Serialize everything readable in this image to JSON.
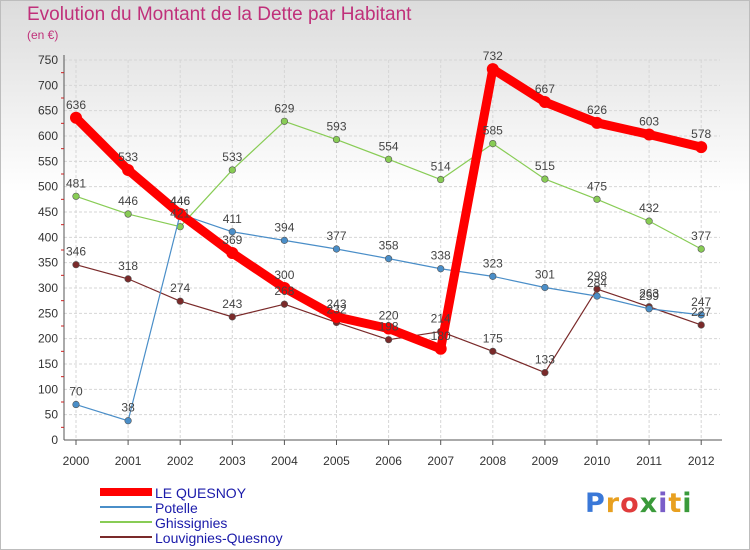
{
  "header": {
    "title": "Evolution du Montant de la Dette par Habitant",
    "subtitle": "(en €)"
  },
  "logo": {
    "text": "Proxiti",
    "letter_colors": [
      "#3a78d8",
      "#e8a020",
      "#e03c3c",
      "#3a9a3a",
      "#7a5ec8",
      "#e8a020",
      "#3a9a3a"
    ]
  },
  "chart_data": {
    "type": "line",
    "x": [
      "2000",
      "2001",
      "2002",
      "2003",
      "2004",
      "2005",
      "2006",
      "2007",
      "2008",
      "2009",
      "2010",
      "2011",
      "2012"
    ],
    "ylim": [
      0,
      750
    ],
    "yticks": [
      0,
      50,
      100,
      150,
      200,
      250,
      300,
      350,
      400,
      450,
      500,
      550,
      600,
      650,
      700,
      750
    ],
    "grid": true,
    "legend_position": "bottom-left",
    "series": [
      {
        "name": "LE QUESNOY",
        "color": "#ff0000",
        "values": [
          636,
          533,
          446,
          369,
          300,
          243,
          220,
          180,
          732,
          667,
          626,
          603,
          578
        ]
      },
      {
        "name": "Potelle",
        "color": "#4a8ec8",
        "values": [
          70,
          38,
          446,
          411,
          394,
          377,
          358,
          338,
          323,
          301,
          284,
          259,
          247
        ]
      },
      {
        "name": "Ghissignies",
        "color": "#88cc55",
        "values": [
          481,
          446,
          421,
          533,
          629,
          593,
          554,
          514,
          585,
          515,
          475,
          432,
          377
        ]
      },
      {
        "name": "Louvignies-Quesnoy",
        "color": "#7a2a2a",
        "values": [
          346,
          318,
          274,
          243,
          268,
          232,
          198,
          214,
          175,
          133,
          298,
          263,
          227
        ]
      }
    ],
    "point_labels": [
      [
        "636",
        "533",
        "446",
        "369",
        "300",
        "243",
        "220",
        "180",
        "732",
        "667",
        "626",
        "603",
        "578"
      ],
      [
        "70",
        "38",
        "446",
        "411",
        "394",
        "377",
        "358",
        "338",
        "323",
        "301",
        "284",
        "259",
        "247"
      ],
      [
        "481",
        "446",
        "421",
        "533",
        "629",
        "593",
        "554",
        "514",
        "585",
        "515",
        "475",
        "432",
        "377"
      ],
      [
        "346",
        "318",
        "274",
        "243",
        "268",
        "232",
        "198",
        "214",
        "175",
        "133",
        "298",
        "263",
        "227"
      ]
    ]
  }
}
